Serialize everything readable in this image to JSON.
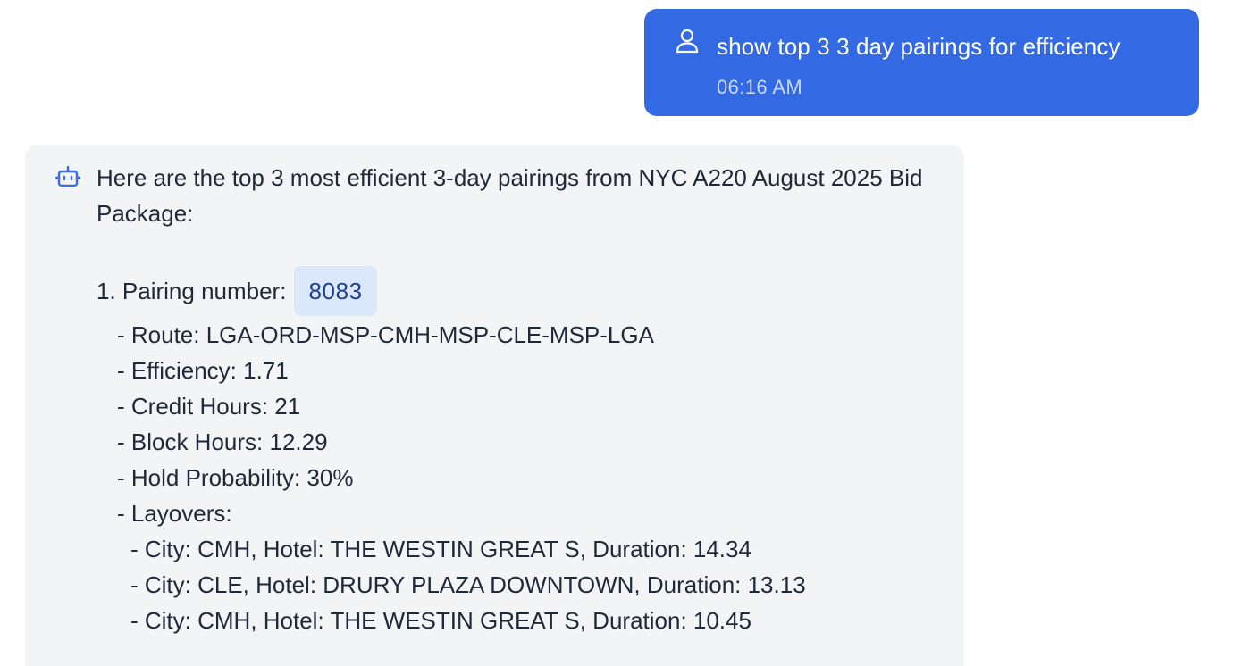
{
  "user_message": {
    "icon": "user-icon",
    "text": "show top 3 3 day pairings for efficiency",
    "time": "06:16 AM"
  },
  "assistant_message": {
    "icon": "bot-icon",
    "intro": "Here are the top 3 most efficient 3-day pairings from NYC A220 August 2025 Bid Package:",
    "pairing_prefix": "1. Pairing number:",
    "pairing_number": "8083",
    "details": [
      "- Route: LGA-ORD-MSP-CMH-MSP-CLE-MSP-LGA",
      "- Efficiency: 1.71",
      "- Credit Hours: 21",
      "- Block Hours: 12.29",
      "- Hold Probability: 30%",
      "- Layovers:"
    ],
    "layovers": [
      "- City: CMH, Hotel: THE WESTIN GREAT S, Duration: 14.34",
      "- City: CLE, Hotel: DRURY PLAZA DOWNTOWN, Duration: 13.13",
      "- City: CMH, Hotel: THE WESTIN GREAT S, Duration: 10.45"
    ]
  },
  "colors": {
    "user_bubble": "#3369e3",
    "assistant_bubble": "#f3f4f6",
    "pairing_chip_bg": "#dbe7fb",
    "pairing_chip_text": "#1e3f8f",
    "bot_icon": "#3b6fe0"
  }
}
